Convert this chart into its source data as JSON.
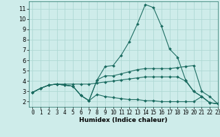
{
  "xlabel": "Humidex (Indice chaleur)",
  "xlim": [
    -0.5,
    23
  ],
  "ylim": [
    1.5,
    11.7
  ],
  "xticks": [
    0,
    1,
    2,
    3,
    4,
    5,
    6,
    7,
    8,
    9,
    10,
    11,
    12,
    13,
    14,
    15,
    16,
    17,
    18,
    19,
    20,
    21,
    22,
    23
  ],
  "yticks": [
    2,
    3,
    4,
    5,
    6,
    7,
    8,
    9,
    10,
    11
  ],
  "bg_color": "#ceecea",
  "grid_color": "#aed8d4",
  "line_color": "#1a6b60",
  "lines": [
    [
      2.9,
      3.3,
      3.6,
      3.7,
      3.6,
      3.5,
      2.6,
      2.1,
      4.1,
      5.4,
      5.5,
      6.5,
      7.8,
      9.5,
      11.4,
      11.1,
      9.3,
      7.1,
      6.3,
      4.1,
      3.0,
      2.5,
      1.9,
      1.8
    ],
    [
      2.9,
      3.3,
      3.6,
      3.7,
      3.6,
      3.5,
      2.6,
      2.1,
      4.1,
      4.5,
      4.5,
      4.7,
      4.9,
      5.1,
      5.2,
      5.2,
      5.2,
      5.2,
      5.3,
      5.4,
      5.5,
      3.0,
      2.5,
      1.8
    ],
    [
      2.9,
      3.3,
      3.6,
      3.7,
      3.7,
      3.7,
      3.7,
      3.7,
      3.8,
      3.9,
      4.0,
      4.1,
      4.2,
      4.3,
      4.4,
      4.4,
      4.4,
      4.4,
      4.4,
      4.0,
      3.0,
      2.5,
      1.9,
      1.8
    ],
    [
      2.9,
      3.3,
      3.6,
      3.7,
      3.6,
      3.5,
      2.6,
      2.1,
      2.7,
      2.5,
      2.4,
      2.3,
      2.2,
      2.2,
      2.1,
      2.1,
      2.0,
      2.0,
      2.0,
      2.0,
      2.0,
      2.5,
      1.9,
      1.8
    ]
  ],
  "label_fontsize": 6.0,
  "tick_fontsize": 5.5,
  "xlabel_fontsize": 6.5
}
